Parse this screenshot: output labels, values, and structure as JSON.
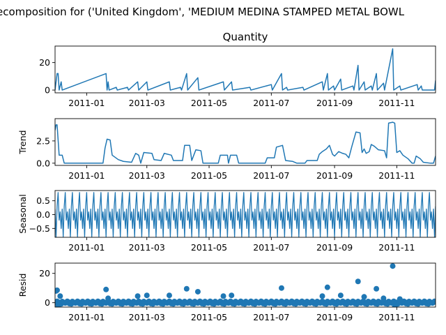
{
  "suptitle": "ecomposition for ('United Kingdom', 'MEDIUM MEDINA STAMPED METAL BOWL",
  "colors": {
    "series": "#1f77b4",
    "axes": "#000000",
    "background": "#ffffff"
  },
  "x_ticks": [
    "2011-01",
    "2011-03",
    "2011-05",
    "2011-07",
    "2011-09",
    "2011-11"
  ],
  "chart_data": [
    {
      "type": "line",
      "title": "Quantity",
      "ylabel": "",
      "xlim": [
        "2010-12-01",
        "2011-12-09"
      ],
      "ylim": [
        -2,
        32
      ],
      "yticks": [
        0,
        20
      ],
      "ytick_labels": [
        "0",
        "20"
      ],
      "grid": false,
      "series": [
        {
          "points": [
            [
              "2010-12-01",
              0
            ],
            [
              "2010-12-03",
              12
            ],
            [
              "2010-12-04",
              12
            ],
            [
              "2010-12-05",
              0
            ],
            [
              "2010-12-07",
              6
            ],
            [
              "2010-12-08",
              0
            ],
            [
              "2011-01-20",
              12
            ],
            [
              "2011-01-21",
              0
            ],
            [
              "2011-01-22",
              6
            ],
            [
              "2011-01-23",
              0
            ],
            [
              "2011-01-30",
              2
            ],
            [
              "2011-01-31",
              0
            ],
            [
              "2011-02-10",
              2
            ],
            [
              "2011-02-11",
              0
            ],
            [
              "2011-02-20",
              6
            ],
            [
              "2011-02-21",
              0
            ],
            [
              "2011-03-01",
              6
            ],
            [
              "2011-03-02",
              0
            ],
            [
              "2011-03-23",
              6
            ],
            [
              "2011-03-24",
              0
            ],
            [
              "2011-04-03",
              2
            ],
            [
              "2011-04-04",
              0
            ],
            [
              "2011-04-09",
              12
            ],
            [
              "2011-04-10",
              0
            ],
            [
              "2011-04-20",
              9
            ],
            [
              "2011-04-21",
              0
            ],
            [
              "2011-05-15",
              6
            ],
            [
              "2011-05-16",
              0
            ],
            [
              "2011-05-23",
              6
            ],
            [
              "2011-05-24",
              0
            ],
            [
              "2011-06-10",
              2
            ],
            [
              "2011-06-11",
              0
            ],
            [
              "2011-07-01",
              4
            ],
            [
              "2011-07-02",
              0
            ],
            [
              "2011-07-11",
              12
            ],
            [
              "2011-07-12",
              0
            ],
            [
              "2011-07-16",
              2
            ],
            [
              "2011-07-17",
              0
            ],
            [
              "2011-08-01",
              2
            ],
            [
              "2011-08-02",
              0
            ],
            [
              "2011-08-20",
              6
            ],
            [
              "2011-08-21",
              0
            ],
            [
              "2011-08-25",
              12
            ],
            [
              "2011-08-26",
              0
            ],
            [
              "2011-08-31",
              3
            ],
            [
              "2011-09-01",
              0
            ],
            [
              "2011-09-07",
              8
            ],
            [
              "2011-09-08",
              0
            ],
            [
              "2011-09-19",
              3
            ],
            [
              "2011-09-20",
              0
            ],
            [
              "2011-09-24",
              18
            ],
            [
              "2011-09-25",
              0
            ],
            [
              "2011-09-30",
              6
            ],
            [
              "2011-10-01",
              0
            ],
            [
              "2011-10-07",
              3
            ],
            [
              "2011-10-08",
              0
            ],
            [
              "2011-10-12",
              12
            ],
            [
              "2011-10-13",
              0
            ],
            [
              "2011-10-19",
              5
            ],
            [
              "2011-10-20",
              0
            ],
            [
              "2011-10-28",
              30
            ],
            [
              "2011-10-29",
              0
            ],
            [
              "2011-11-04",
              3
            ],
            [
              "2011-11-05",
              0
            ],
            [
              "2011-11-21",
              4
            ],
            [
              "2011-11-22",
              0
            ],
            [
              "2011-11-25",
              3
            ],
            [
              "2011-11-26",
              0
            ],
            [
              "2011-12-08",
              0
            ],
            [
              "2011-12-09",
              7
            ]
          ]
        }
      ]
    },
    {
      "type": "line",
      "title": "",
      "ylabel": "Trend",
      "xlim": [
        "2010-12-01",
        "2011-12-09"
      ],
      "ylim": [
        -0.25,
        5.0
      ],
      "yticks": [
        0,
        2.5
      ],
      "ytick_labels": [
        "0.0",
        "2.5"
      ],
      "grid": false,
      "series": [
        {
          "points": [
            [
              "2010-12-01",
              3.7
            ],
            [
              "2010-12-02",
              4.3
            ],
            [
              "2010-12-03",
              4.3
            ],
            [
              "2010-12-05",
              0.9
            ],
            [
              "2010-12-08",
              0.9
            ],
            [
              "2010-12-10",
              0.0
            ],
            [
              "2011-01-17",
              0.0
            ],
            [
              "2011-01-19",
              1.7
            ],
            [
              "2011-01-21",
              2.7
            ],
            [
              "2011-01-24",
              2.6
            ],
            [
              "2011-01-26",
              0.9
            ],
            [
              "2011-02-01",
              0.4
            ],
            [
              "2011-02-06",
              0.2
            ],
            [
              "2011-02-14",
              0.1
            ],
            [
              "2011-02-18",
              1.1
            ],
            [
              "2011-02-21",
              0.9
            ],
            [
              "2011-02-23",
              0.0
            ],
            [
              "2011-02-26",
              1.2
            ],
            [
              "2011-03-06",
              1.1
            ],
            [
              "2011-03-08",
              0.4
            ],
            [
              "2011-03-15",
              0.3
            ],
            [
              "2011-03-18",
              1.1
            ],
            [
              "2011-03-25",
              0.9
            ],
            [
              "2011-03-27",
              0.3
            ],
            [
              "2011-04-05",
              0.3
            ],
            [
              "2011-04-07",
              2.0
            ],
            [
              "2011-04-12",
              2.0
            ],
            [
              "2011-04-14",
              0.3
            ],
            [
              "2011-04-18",
              1.5
            ],
            [
              "2011-04-23",
              1.4
            ],
            [
              "2011-04-25",
              0.0
            ],
            [
              "2011-05-10",
              0.0
            ],
            [
              "2011-05-12",
              0.9
            ],
            [
              "2011-05-19",
              0.9
            ],
            [
              "2011-05-20",
              0.0
            ],
            [
              "2011-05-22",
              0.9
            ],
            [
              "2011-05-28",
              0.9
            ],
            [
              "2011-05-30",
              0.0
            ],
            [
              "2011-06-25",
              0.0
            ],
            [
              "2011-06-27",
              0.6
            ],
            [
              "2011-07-04",
              0.6
            ],
            [
              "2011-07-06",
              1.8
            ],
            [
              "2011-07-12",
              2.0
            ],
            [
              "2011-07-15",
              0.3
            ],
            [
              "2011-07-22",
              0.2
            ],
            [
              "2011-07-26",
              0.0
            ],
            [
              "2011-08-03",
              0.0
            ],
            [
              "2011-08-05",
              0.3
            ],
            [
              "2011-08-15",
              0.3
            ],
            [
              "2011-08-17",
              1.0
            ],
            [
              "2011-08-20",
              1.3
            ],
            [
              "2011-08-24",
              1.6
            ],
            [
              "2011-08-27",
              2.0
            ],
            [
              "2011-08-30",
              1.0
            ],
            [
              "2011-09-01",
              0.8
            ],
            [
              "2011-09-05",
              1.3
            ],
            [
              "2011-09-09",
              1.1
            ],
            [
              "2011-09-12",
              1.0
            ],
            [
              "2011-09-15",
              0.6
            ],
            [
              "2011-09-18",
              1.9
            ],
            [
              "2011-09-20",
              2.7
            ],
            [
              "2011-09-22",
              3.5
            ],
            [
              "2011-09-26",
              3.4
            ],
            [
              "2011-09-28",
              1.2
            ],
            [
              "2011-09-30",
              1.6
            ],
            [
              "2011-10-02",
              1.1
            ],
            [
              "2011-10-05",
              1.3
            ],
            [
              "2011-10-07",
              2.1
            ],
            [
              "2011-10-10",
              1.9
            ],
            [
              "2011-10-14",
              1.5
            ],
            [
              "2011-10-20",
              1.4
            ],
            [
              "2011-10-22",
              0.6
            ],
            [
              "2011-10-24",
              4.5
            ],
            [
              "2011-10-28",
              4.6
            ],
            [
              "2011-10-30",
              4.5
            ],
            [
              "2011-11-01",
              1.2
            ],
            [
              "2011-11-04",
              1.4
            ],
            [
              "2011-11-07",
              0.9
            ],
            [
              "2011-11-12",
              0.5
            ],
            [
              "2011-11-16",
              0.0
            ],
            [
              "2011-11-18",
              0.0
            ],
            [
              "2011-11-20",
              0.8
            ],
            [
              "2011-11-24",
              0.5
            ],
            [
              "2011-11-27",
              0.1
            ],
            [
              "2011-12-04",
              0.0
            ],
            [
              "2011-12-07",
              0.0
            ],
            [
              "2011-12-09",
              0.8
            ]
          ]
        }
      ]
    },
    {
      "type": "line",
      "title": "",
      "ylabel": "Seasonal",
      "xlim": [
        "2010-12-01",
        "2011-12-09"
      ],
      "ylim": [
        -0.82,
        0.87
      ],
      "yticks": [
        -0.5,
        0.0,
        0.5
      ],
      "ytick_labels": [
        "−0.5",
        "0.0",
        "0.5"
      ],
      "grid": false,
      "seasonal_pattern": {
        "start": "2010-12-01",
        "end": "2011-12-09",
        "period_days": 7,
        "weekly_values": [
          0.2,
          -0.8,
          0.3,
          0.8,
          -0.2,
          0.1,
          -0.5
        ]
      }
    },
    {
      "type": "scatter",
      "title": "",
      "ylabel": "Resid",
      "xlim": [
        "2010-12-01",
        "2011-12-09"
      ],
      "ylim": [
        -3,
        27
      ],
      "yticks": [
        0,
        20
      ],
      "ytick_labels": [
        "0",
        "20"
      ],
      "grid": false,
      "outliers": [
        [
          "2010-12-02",
          8
        ],
        [
          "2010-12-03",
          8.5
        ],
        [
          "2010-12-04",
          -3
        ],
        [
          "2010-12-06",
          4.5
        ],
        [
          "2011-01-20",
          9
        ],
        [
          "2011-01-22",
          3
        ],
        [
          "2011-02-20",
          4.5
        ],
        [
          "2011-03-01",
          5
        ],
        [
          "2011-03-23",
          5
        ],
        [
          "2011-04-09",
          9.5
        ],
        [
          "2011-04-20",
          7.5
        ],
        [
          "2011-05-15",
          4.5
        ],
        [
          "2011-05-23",
          5
        ],
        [
          "2011-07-11",
          10
        ],
        [
          "2011-08-20",
          4.5
        ],
        [
          "2011-08-25",
          10.5
        ],
        [
          "2011-09-07",
          5
        ],
        [
          "2011-09-24",
          14.5
        ],
        [
          "2011-09-30",
          4
        ],
        [
          "2011-10-12",
          9.5
        ],
        [
          "2011-10-19",
          3
        ],
        [
          "2011-10-28",
          25
        ],
        [
          "2011-10-30",
          -3
        ],
        [
          "2011-11-04",
          2.5
        ]
      ],
      "baseline_residuals": {
        "start": "2010-12-01",
        "end": "2011-12-09",
        "step_days": 1,
        "typical_values": [
          0.3,
          -0.6,
          0.8,
          -0.2,
          0.5,
          -0.8,
          0.1,
          0.9,
          -0.4,
          0.2
        ]
      }
    }
  ]
}
